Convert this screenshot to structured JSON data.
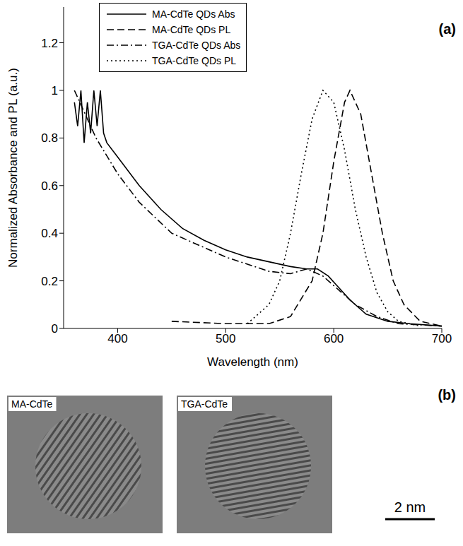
{
  "chart_data": {
    "type": "line",
    "panel_label": "(a)",
    "xlabel": "Wavelength (nm)",
    "ylabel": "Normalized Absorbance and PL (a.u.)",
    "xlim": [
      350,
      700
    ],
    "xticks": [
      400,
      500,
      600,
      700
    ],
    "ylim": [
      0,
      1.35
    ],
    "yticks": [
      0,
      0.2,
      0.4,
      0.6,
      0.8,
      1,
      1.2
    ],
    "legend": "top",
    "series": [
      {
        "name": "MA-CdTe QDs Abs",
        "color": "#000000",
        "line_style": "solid",
        "x": [
          360,
          363,
          366,
          369,
          372,
          375,
          378,
          381,
          384,
          387,
          390,
          400,
          420,
          440,
          460,
          480,
          500,
          520,
          540,
          560,
          575,
          585,
          595,
          605,
          615,
          630,
          650,
          670,
          700
        ],
        "values": [
          0.95,
          0.85,
          1.0,
          0.78,
          0.95,
          0.82,
          1.0,
          0.85,
          1.0,
          0.82,
          0.78,
          0.72,
          0.6,
          0.5,
          0.42,
          0.37,
          0.33,
          0.3,
          0.28,
          0.26,
          0.25,
          0.25,
          0.22,
          0.17,
          0.12,
          0.06,
          0.03,
          0.02,
          0.01
        ]
      },
      {
        "name": "MA-CdTe QDs PL",
        "color": "#000000",
        "line_style": "dashed",
        "x": [
          450,
          500,
          540,
          560,
          580,
          590,
          600,
          610,
          615,
          625,
          635,
          645,
          655,
          665,
          680,
          700
        ],
        "values": [
          0.03,
          0.02,
          0.02,
          0.05,
          0.2,
          0.4,
          0.7,
          0.95,
          1.0,
          0.9,
          0.65,
          0.4,
          0.2,
          0.1,
          0.03,
          0.01
        ]
      },
      {
        "name": "TGA-CdTe QDs Abs",
        "color": "#000000",
        "line_style": "dashdot",
        "x": [
          360,
          380,
          400,
          420,
          450,
          500,
          540,
          560,
          575,
          590,
          600,
          620,
          640,
          660,
          700
        ],
        "values": [
          1.0,
          0.8,
          0.65,
          0.53,
          0.4,
          0.3,
          0.24,
          0.23,
          0.25,
          0.22,
          0.18,
          0.1,
          0.05,
          0.02,
          0.01
        ]
      },
      {
        "name": "TGA-CdTe QDs PL",
        "color": "#000000",
        "line_style": "dotted",
        "x": [
          520,
          540,
          550,
          560,
          570,
          580,
          590,
          600,
          610,
          620,
          630,
          640,
          650,
          660,
          680
        ],
        "values": [
          0.02,
          0.1,
          0.2,
          0.4,
          0.65,
          0.88,
          1.0,
          0.95,
          0.75,
          0.5,
          0.3,
          0.15,
          0.07,
          0.03,
          0.01
        ]
      }
    ]
  },
  "images": {
    "panel_label": "(b)",
    "panels": [
      {
        "label": "MA-CdTe"
      },
      {
        "label": "TGA-CdTe"
      }
    ],
    "scale_bar": "2 nm"
  }
}
